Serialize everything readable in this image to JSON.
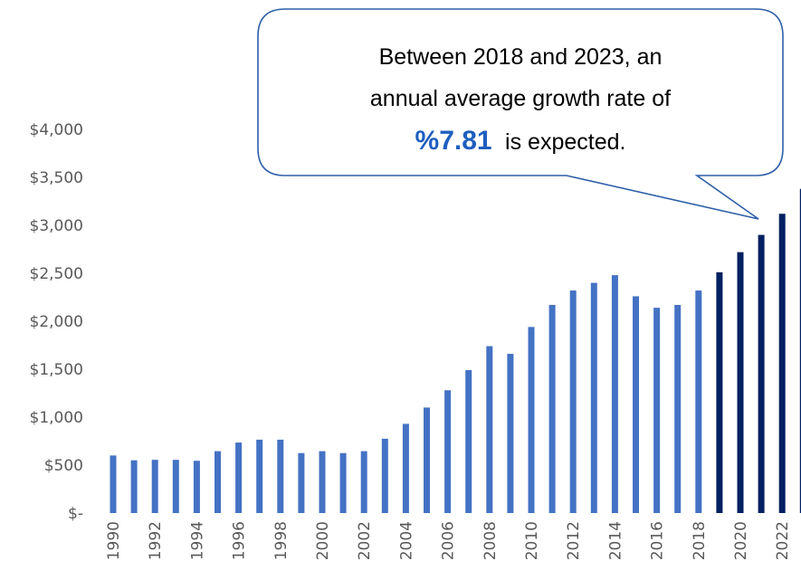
{
  "chart_data": {
    "type": "bar",
    "title": "",
    "xlabel": "",
    "ylabel": "",
    "ylim": [
      0,
      4000
    ],
    "y_ticks": [
      "$-",
      "$500",
      "$1,000",
      "$1,500",
      "$2,000",
      "$2,500",
      "$3,000",
      "$3,500",
      "$4,000"
    ],
    "y_tick_values": [
      0,
      500,
      1000,
      1500,
      2000,
      2500,
      3000,
      3500,
      4000
    ],
    "grid": false,
    "categories": [
      "1990",
      "1991",
      "1992",
      "1993",
      "1994",
      "1995",
      "1996",
      "1997",
      "1998",
      "1999",
      "2000",
      "2001",
      "2002",
      "2003",
      "2004",
      "2005",
      "2006",
      "2007",
      "2008",
      "2009",
      "2010",
      "2011",
      "2012",
      "2013",
      "2014",
      "2015",
      "2016",
      "2017",
      "2018",
      "2019",
      "2020",
      "2021",
      "2022",
      "2023"
    ],
    "x_tick_labels": [
      "1990",
      "1992",
      "1994",
      "1996",
      "1998",
      "2000",
      "2002",
      "2004",
      "2006",
      "2008",
      "2010",
      "2012",
      "2014",
      "2016",
      "2018",
      "2020",
      "2022"
    ],
    "values": [
      600,
      550,
      555,
      555,
      545,
      645,
      735,
      765,
      765,
      625,
      645,
      625,
      645,
      775,
      930,
      1100,
      1280,
      1490,
      1740,
      1660,
      1940,
      2170,
      2320,
      2400,
      2480,
      2260,
      2140,
      2170,
      2320,
      2510,
      2720,
      2900,
      3120,
      3380
    ],
    "series_colors": {
      "actual": "#4472c4",
      "forecast": "#002060"
    },
    "forecast_start": "2019",
    "annotation": {
      "line1": "Between 2018 and 2023, an",
      "line2": "annual average growth rate of",
      "highlight": "%7.81",
      "line3_rest": "is expected.",
      "highlight_color": "#1f5fbf",
      "border_color": "#2e5fa8"
    }
  }
}
